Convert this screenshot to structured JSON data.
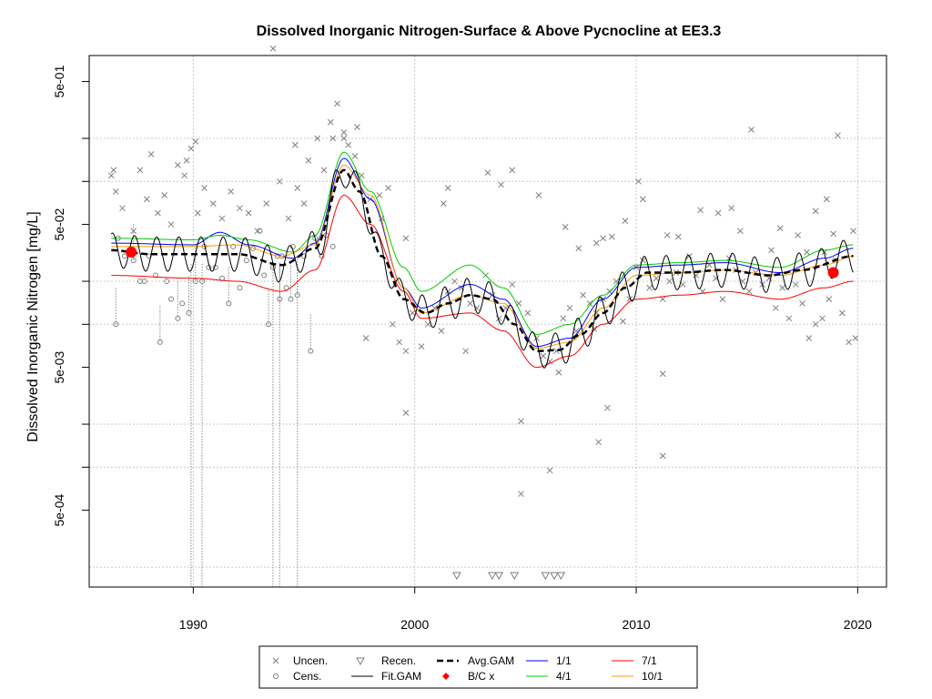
{
  "chart_data": {
    "type": "scatter",
    "title": "Dissolved Inorganic Nitrogen-Surface & Above Pycnocline at EE3.3",
    "xlabel": "",
    "ylabel": "Dissolved Inorganic Nitrogen [mg/L]",
    "xlim": [
      1985.3,
      2021.3
    ],
    "ylim": [
      0.000145,
      0.76
    ],
    "log_y": true,
    "grid": true,
    "x_ticks": [
      1990,
      2000,
      2010,
      2020
    ],
    "x_tick_labels": [
      "1990",
      "2000",
      "2010",
      "2020"
    ],
    "y_ticks": [
      0.0005,
      0.005,
      0.05,
      0.5
    ],
    "y_tick_labels": [
      "5e-04",
      "5e-03",
      "5e-02",
      "5e-01"
    ],
    "y_minor_ticks": [
      0.001,
      0.01,
      0.1,
      0.2,
      0.002,
      0.02
    ],
    "legend": {
      "position": "bottom",
      "items": [
        {
          "label": "Uncen.",
          "symbol": "x",
          "color": "#7f7f7f"
        },
        {
          "label": "Cens.",
          "symbol": "o",
          "color": "#7f7f7f"
        },
        {
          "label": "Recen.",
          "symbol": "triangle-down",
          "color": "#7f7f7f"
        },
        {
          "label": "Fit.GAM",
          "symbol": "line",
          "color": "#000000"
        },
        {
          "label": "Avg.GAM",
          "symbol": "dashed-line",
          "color": "#000000"
        },
        {
          "label": "B/C x",
          "symbol": "diamond",
          "color": "#ff0000"
        },
        {
          "label": "1/1",
          "symbol": "line",
          "color": "#0000ff"
        },
        {
          "label": "4/1",
          "symbol": "line",
          "color": "#00cc00"
        },
        {
          "label": "7/1",
          "symbol": "line",
          "color": "#ff0000"
        },
        {
          "label": "10/1",
          "symbol": "line",
          "color": "#ff9900"
        }
      ]
    },
    "avg_gam": {
      "x": [
        1986.3,
        1988,
        1990,
        1992,
        1994,
        1995.5,
        1996.8,
        1997.5,
        1998.5,
        1999.5,
        2000.5,
        2001.5,
        2002.5,
        2003.5,
        2004.5,
        2005.5,
        2006.5,
        2007.5,
        2008.5,
        2009.5,
        2010.5,
        2012,
        2014,
        2016,
        2017.5,
        2019.8
      ],
      "y": [
        0.033,
        0.031,
        0.031,
        0.031,
        0.026,
        0.034,
        0.12,
        0.085,
        0.03,
        0.015,
        0.012,
        0.014,
        0.016,
        0.015,
        0.01,
        0.0065,
        0.0066,
        0.0085,
        0.012,
        0.018,
        0.023,
        0.023,
        0.024,
        0.022,
        0.024,
        0.03
      ]
    },
    "fit_gam_amplitude": 0.12,
    "seasonal_lines": [
      {
        "name": "1/1",
        "color": "#0000ff",
        "factor": 1.12,
        "x": [
          1986.3,
          1990,
          1991.2,
          1992.5,
          1994.5,
          1995.5,
          1996.8,
          1998,
          1999.5,
          2000.3,
          2002.5,
          2004,
          2005.5,
          2007,
          2008.5,
          2010,
          2012,
          2014,
          2016.5,
          2018.5,
          2019.8
        ],
        "y": [
          0.037,
          0.036,
          0.044,
          0.036,
          0.029,
          0.037,
          0.145,
          0.075,
          0.018,
          0.013,
          0.019,
          0.015,
          0.007,
          0.008,
          0.015,
          0.025,
          0.026,
          0.027,
          0.023,
          0.029,
          0.034
        ]
      },
      {
        "name": "4/1",
        "color": "#00cc00",
        "factor": 1.22,
        "x": [
          1986.3,
          1990,
          1991.2,
          1992.5,
          1994.5,
          1995.5,
          1996.8,
          1998,
          1999.5,
          2000.3,
          2002.5,
          2004,
          2005.5,
          2007,
          2008.5,
          2010,
          2012,
          2014,
          2016.5,
          2018.5,
          2019.8
        ],
        "y": [
          0.04,
          0.039,
          0.042,
          0.039,
          0.032,
          0.042,
          0.16,
          0.085,
          0.025,
          0.017,
          0.026,
          0.018,
          0.0085,
          0.01,
          0.016,
          0.026,
          0.027,
          0.028,
          0.025,
          0.033,
          0.036
        ]
      },
      {
        "name": "7/1",
        "color": "#ff0000",
        "factor": 0.72,
        "x": [
          1986.3,
          1990,
          1992,
          1994,
          1995.5,
          1996.8,
          1998,
          1999.5,
          2000.3,
          2002.5,
          2004,
          2005.5,
          2007,
          2008.5,
          2010,
          2012,
          2014,
          2016.5,
          2018.5,
          2019.8
        ],
        "y": [
          0.022,
          0.021,
          0.02,
          0.017,
          0.024,
          0.08,
          0.05,
          0.017,
          0.011,
          0.012,
          0.009,
          0.005,
          0.006,
          0.01,
          0.015,
          0.016,
          0.017,
          0.015,
          0.018,
          0.02
        ]
      },
      {
        "name": "10/1",
        "color": "#ff9900",
        "factor": 1.02,
        "x": [
          1986.3,
          1990,
          1992,
          1994,
          1995.5,
          1996.8,
          1998,
          1999.5,
          2000.3,
          2002.5,
          2004,
          2005.5,
          2007,
          2008.5,
          2010,
          2012,
          2014,
          2016.5,
          2018.5,
          2019.8
        ],
        "y": [
          0.035,
          0.035,
          0.036,
          0.03,
          0.036,
          0.13,
          0.08,
          0.018,
          0.012,
          0.016,
          0.014,
          0.0068,
          0.0075,
          0.013,
          0.022,
          0.023,
          0.024,
          0.022,
          0.026,
          0.03
        ]
      }
    ],
    "bc_points": [
      {
        "x": 1987.2,
        "y": 0.032
      },
      {
        "x": 2018.9,
        "y": 0.023
      }
    ],
    "uncensored_points": [
      [
        1986.3,
        0.11
      ],
      [
        1986.5,
        0.085
      ],
      [
        1986.8,
        0.065
      ],
      [
        1987.3,
        0.045
      ],
      [
        1987.6,
        0.12
      ],
      [
        1987.9,
        0.075
      ],
      [
        1988.1,
        0.155
      ],
      [
        1988.4,
        0.06
      ],
      [
        1988.7,
        0.08
      ],
      [
        1989.0,
        0.05
      ],
      [
        1989.3,
        0.13
      ],
      [
        1989.6,
        0.11
      ],
      [
        1989.9,
        0.17
      ],
      [
        1990.2,
        0.06
      ],
      [
        1990.5,
        0.09
      ],
      [
        1990.9,
        0.07
      ],
      [
        1991.3,
        0.055
      ],
      [
        1991.7,
        0.085
      ],
      [
        1992.1,
        0.065
      ],
      [
        1992.5,
        0.06
      ],
      [
        1992.9,
        0.045
      ],
      [
        1993.3,
        0.07
      ],
      [
        1993.6,
        0.85
      ],
      [
        1993.9,
        0.1
      ],
      [
        1994.3,
        0.055
      ],
      [
        1994.7,
        0.09
      ],
      [
        1995.0,
        0.07
      ],
      [
        1995.2,
        0.14
      ],
      [
        1995.6,
        0.2
      ],
      [
        1995.9,
        0.12
      ],
      [
        1996.2,
        0.26
      ],
      [
        1996.5,
        0.35
      ],
      [
        1996.8,
        0.2
      ],
      [
        1997.0,
        0.18
      ],
      [
        1997.3,
        0.15
      ],
      [
        1997.6,
        0.11
      ],
      [
        1998.0,
        0.075
      ],
      [
        1998.4,
        0.08
      ],
      [
        1998.8,
        0.09
      ],
      [
        1997.8,
        0.008
      ],
      [
        1999.0,
        0.01
      ],
      [
        1999.3,
        0.0075
      ],
      [
        1999.6,
        0.0065
      ],
      [
        1999.9,
        0.012
      ],
      [
        2000.3,
        0.007
      ],
      [
        2000.6,
        0.01
      ],
      [
        2000.9,
        0.013
      ],
      [
        2001.2,
        0.009
      ],
      [
        2001.5,
        0.017
      ],
      [
        2001.8,
        0.02
      ],
      [
        2002.1,
        0.018
      ],
      [
        2002.5,
        0.014
      ],
      [
        2002.8,
        0.013
      ],
      [
        2003.2,
        0.022
      ],
      [
        2003.5,
        0.016
      ],
      [
        2003.8,
        0.011
      ],
      [
        2004.1,
        0.013
      ],
      [
        2004.4,
        0.019
      ],
      [
        2004.7,
        0.014
      ],
      [
        2005.1,
        0.012
      ],
      [
        2005.5,
        0.008
      ],
      [
        2005.8,
        0.006
      ],
      [
        2006.1,
        0.0055
      ],
      [
        2006.4,
        0.0065
      ],
      [
        2006.7,
        0.011
      ],
      [
        2007.0,
        0.013
      ],
      [
        2007.3,
        0.009
      ],
      [
        2007.6,
        0.016
      ],
      [
        2007.9,
        0.014
      ],
      [
        2008.2,
        0.012
      ],
      [
        2008.5,
        0.015
      ],
      [
        2008.8,
        0.017
      ],
      [
        2009.1,
        0.02
      ],
      [
        2009.4,
        0.0105
      ],
      [
        2009.7,
        0.015
      ],
      [
        2010.0,
        0.025
      ],
      [
        2010.3,
        0.028
      ],
      [
        2010.6,
        0.018
      ],
      [
        2010.9,
        0.021
      ],
      [
        2011.2,
        0.015
      ],
      [
        2011.5,
        0.02
      ],
      [
        2011.8,
        0.023
      ],
      [
        2012.1,
        0.019
      ],
      [
        2012.4,
        0.03
      ],
      [
        2012.7,
        0.022
      ],
      [
        2013.0,
        0.017
      ],
      [
        2013.3,
        0.026
      ],
      [
        2013.6,
        0.021
      ],
      [
        2013.9,
        0.015
      ],
      [
        2014.2,
        0.029
      ],
      [
        2014.5,
        0.024
      ],
      [
        2014.8,
        0.02
      ],
      [
        2015.1,
        0.017
      ],
      [
        2015.4,
        0.023
      ],
      [
        2015.7,
        0.019
      ],
      [
        2016.0,
        0.021
      ],
      [
        2016.3,
        0.013
      ],
      [
        2016.6,
        0.018
      ],
      [
        2016.9,
        0.011
      ],
      [
        2017.2,
        0.019
      ],
      [
        2017.5,
        0.014
      ],
      [
        2017.8,
        0.008
      ],
      [
        2018.1,
        0.01
      ],
      [
        2018.4,
        0.011
      ],
      [
        2018.7,
        0.015
      ],
      [
        2019.0,
        0.028
      ],
      [
        2019.3,
        0.012
      ],
      [
        2019.6,
        0.0075
      ],
      [
        2019.9,
        0.008
      ],
      [
        1986.4,
        0.12
      ],
      [
        1989.7,
        0.14
      ],
      [
        1990.1,
        0.19
      ],
      [
        1994.6,
        0.18
      ],
      [
        1996.3,
        0.2
      ],
      [
        1996.8,
        0.22
      ],
      [
        1997.4,
        0.24
      ],
      [
        1998.5,
        0.055
      ],
      [
        1999.6,
        0.04
      ],
      [
        2001.3,
        0.07
      ],
      [
        2001.5,
        0.09
      ],
      [
        2003.3,
        0.115
      ],
      [
        2003.9,
        0.095
      ],
      [
        2004.4,
        0.12
      ],
      [
        2005.6,
        0.08
      ],
      [
        2006.8,
        0.048
      ],
      [
        2007.4,
        0.034
      ],
      [
        2008.2,
        0.037
      ],
      [
        2008.5,
        0.04
      ],
      [
        2008.9,
        0.041
      ],
      [
        2009.5,
        0.053
      ],
      [
        2010.1,
        0.1
      ],
      [
        2010.3,
        0.075
      ],
      [
        2011.4,
        0.042
      ],
      [
        2011.9,
        0.041
      ],
      [
        2012.9,
        0.063
      ],
      [
        2013.7,
        0.06
      ],
      [
        2014.3,
        0.065
      ],
      [
        2014.7,
        0.045
      ],
      [
        2015.2,
        0.23
      ],
      [
        2016.1,
        0.033
      ],
      [
        2016.5,
        0.047
      ],
      [
        2017.3,
        0.042
      ],
      [
        2017.7,
        0.032
      ],
      [
        2018.1,
        0.062
      ],
      [
        2018.5,
        0.032
      ],
      [
        2018.6,
        0.075
      ],
      [
        2019.1,
        0.21
      ],
      [
        2019.8,
        0.045
      ],
      [
        2018.9,
        0.043
      ],
      [
        1999.6,
        0.0024
      ],
      [
        2002.3,
        0.0065
      ],
      [
        2004.8,
        0.0021
      ],
      [
        2006.1,
        0.00095
      ],
      [
        2006.5,
        0.0046
      ],
      [
        2008.1,
        0.0093
      ],
      [
        2008.3,
        0.0015
      ],
      [
        2008.7,
        0.0026
      ],
      [
        2011.2,
        0.0012
      ],
      [
        2011.2,
        0.0045
      ],
      [
        2004.8,
        0.00065
      ]
    ],
    "censored_points": [
      [
        1986.5,
        0.01
      ],
      [
        1986.6,
        0.04
      ],
      [
        1986.9,
        0.03
      ],
      [
        1987.3,
        0.028
      ],
      [
        1987.6,
        0.02
      ],
      [
        1987.8,
        0.02
      ],
      [
        1988.0,
        0.03
      ],
      [
        1988.3,
        0.022
      ],
      [
        1988.5,
        0.0075
      ],
      [
        1988.8,
        0.02
      ],
      [
        1989.0,
        0.015
      ],
      [
        1989.3,
        0.011
      ],
      [
        1989.5,
        0.014
      ],
      [
        1989.8,
        0.012
      ],
      [
        1990.1,
        0.02
      ],
      [
        1990.5,
        0.035
      ],
      [
        1990.7,
        0.025
      ],
      [
        1991.0,
        0.025
      ],
      [
        1991.3,
        0.021
      ],
      [
        1991.6,
        0.014
      ],
      [
        1991.8,
        0.035
      ],
      [
        1992.1,
        0.018
      ],
      [
        1992.4,
        0.028
      ],
      [
        1992.7,
        0.034
      ],
      [
        1993.0,
        0.045
      ],
      [
        1993.2,
        0.022
      ],
      [
        1993.4,
        0.01
      ],
      [
        1993.6,
        0.025
      ],
      [
        1993.8,
        0.03
      ],
      [
        1994.0,
        0.03
      ],
      [
        1994.2,
        0.018
      ],
      [
        1994.5,
        0.035
      ],
      [
        1994.7,
        0.016
      ],
      [
        1995.0,
        0.03
      ],
      [
        1995.3,
        0.0065
      ],
      [
        1995.5,
        0.04
      ],
      [
        1995.8,
        0.03
      ],
      [
        1996.0,
        0.042
      ],
      [
        1996.3,
        0.035
      ],
      [
        1990.4,
        0.02
      ],
      [
        1993.9,
        0.015
      ],
      [
        1994.4,
        0.015
      ]
    ],
    "censored_drop_lines": [
      [
        1986.5,
        0.01
      ],
      [
        1987.3,
        0.028
      ],
      [
        1988.5,
        0.0075
      ],
      [
        1989.3,
        0.011
      ],
      [
        1989.8,
        0.012
      ],
      [
        1990.1,
        0.02
      ],
      [
        1991.6,
        0.014
      ],
      [
        1993.4,
        0.01
      ],
      [
        1993.9,
        0.015
      ],
      [
        1994.4,
        0.015
      ],
      [
        1994.7,
        0.016
      ],
      [
        1995.3,
        0.0065
      ]
    ],
    "censored_full_lines": [
      1989.9,
      1990.4,
      1993.6,
      1993.9,
      1994.7
    ],
    "recensored_points": [
      [
        2001.9,
        0.000175
      ],
      [
        2003.5,
        0.000175
      ],
      [
        2003.8,
        0.000175
      ],
      [
        2004.5,
        0.000175
      ],
      [
        2005.9,
        0.000175
      ],
      [
        2006.3,
        0.000175
      ],
      [
        2006.6,
        0.000175
      ]
    ]
  }
}
